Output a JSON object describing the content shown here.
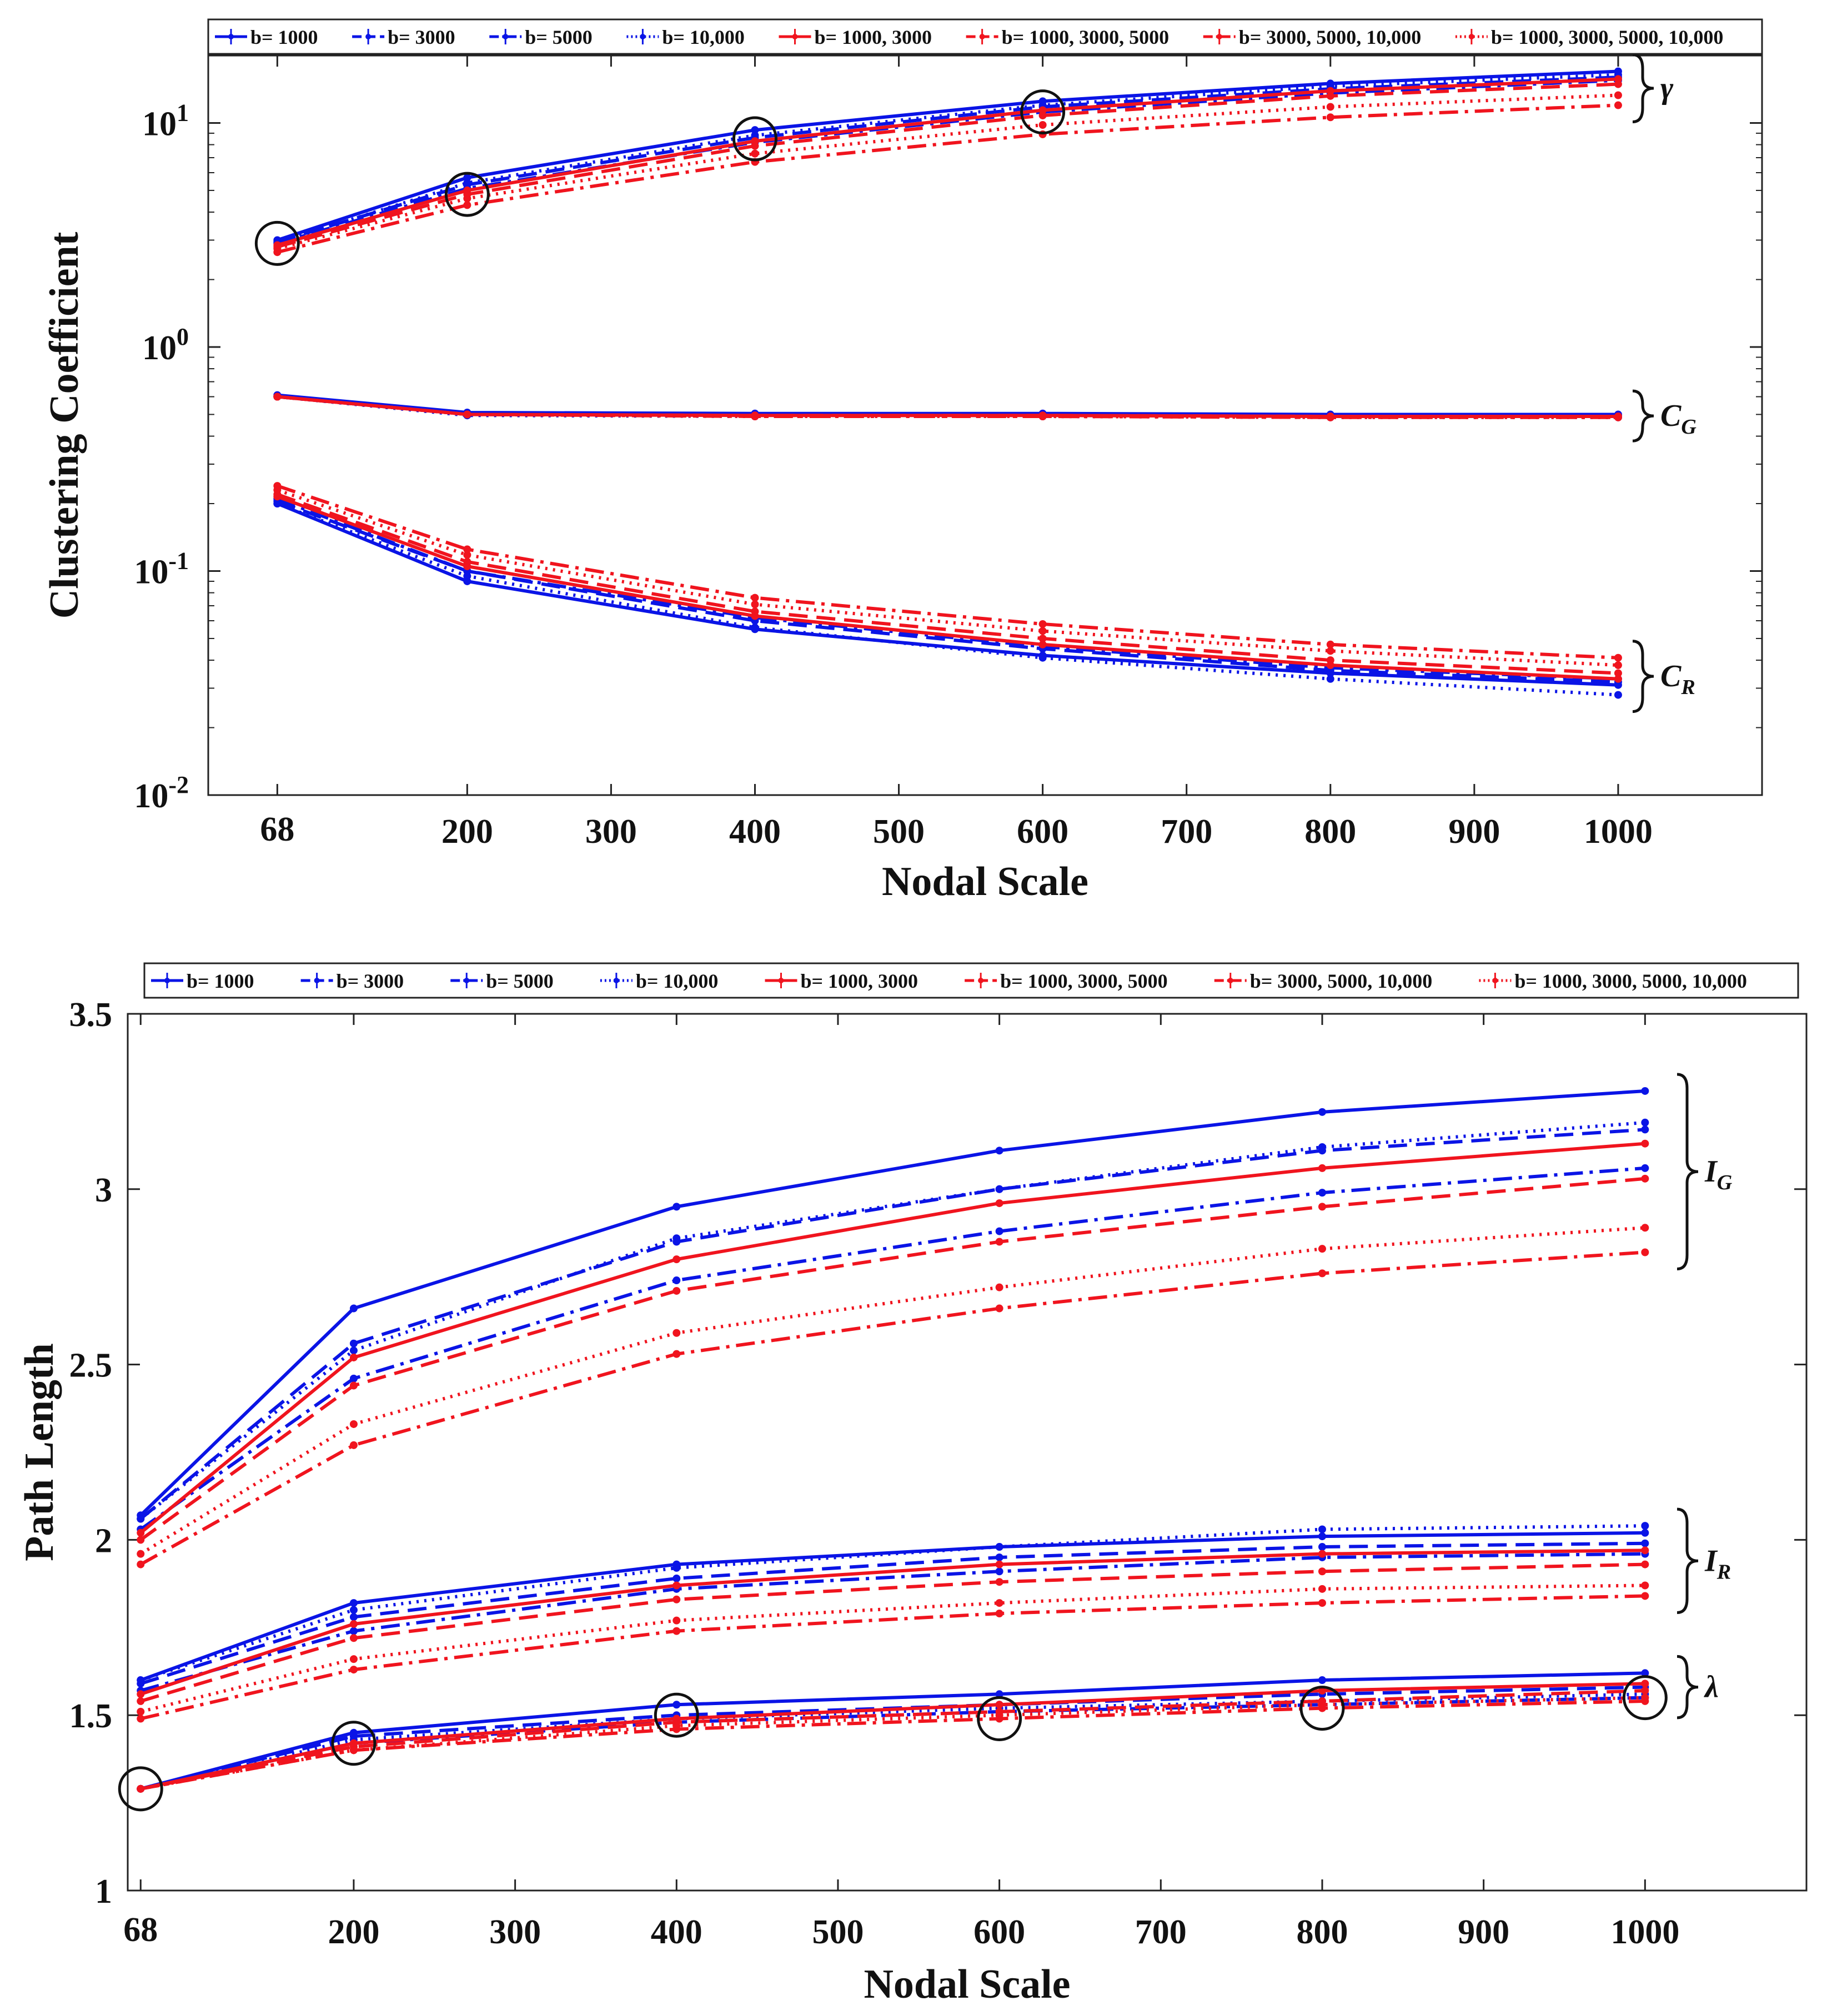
{
  "colors": {
    "blue": "#0a14e6",
    "red": "#f0141e",
    "axis": "#222222",
    "highlight": "#111111"
  },
  "legend_entries": [
    "b= 1000",
    "b= 3000",
    "b= 5000",
    "b= 10,000",
    "b= 1000, 3000",
    "b= 1000, 3000, 5000",
    "b= 3000, 5000, 10,000",
    "b= 1000, 3000, 5000, 10,000"
  ],
  "chart_data": [
    {
      "type": "line",
      "title": "",
      "xlabel": "Nodal Scale",
      "ylabel": "Clustering Coefficient",
      "yscale": "log",
      "ylim": [
        0.01,
        20
      ],
      "xlim": [
        20,
        1100
      ],
      "x": [
        68,
        200,
        400,
        600,
        800,
        1000
      ],
      "x_ticks": [
        68,
        200,
        300,
        400,
        500,
        600,
        700,
        800,
        900,
        1000
      ],
      "x_tick_labels": [
        "68",
        "200",
        "300",
        "400",
        "500",
        "600",
        "700",
        "800",
        "900",
        "1000"
      ],
      "y_tick_labels": [
        {
          "base": "10",
          "exp": "1"
        },
        {
          "base": "10",
          "exp": "0"
        },
        {
          "base": "10",
          "exp": "-1"
        },
        {
          "base": "10",
          "exp": "-2"
        }
      ],
      "legend_position": "top",
      "groups": [
        {
          "label": "γ",
          "sub": ""
        },
        {
          "label": "C",
          "sub": "G"
        },
        {
          "label": "C",
          "sub": "R"
        }
      ],
      "highlighted_points": [
        [
          68,
          2.9
        ],
        [
          200,
          4.8
        ],
        [
          400,
          8.5
        ],
        [
          600,
          11.2
        ]
      ],
      "series": [
        {
          "name": "b= 1000",
          "group": 0,
          "color": "blue",
          "style": "solid",
          "values": [
            3.0,
            5.7,
            9.3,
            12.5,
            15.0,
            17.0
          ]
        },
        {
          "name": "b= 3000",
          "group": 0,
          "color": "blue",
          "style": "dashed",
          "values": [
            2.95,
            5.3,
            8.6,
            11.8,
            14.2,
            16.0
          ]
        },
        {
          "name": "b= 5000",
          "group": 0,
          "color": "blue",
          "style": "dashdot",
          "values": [
            2.9,
            5.1,
            8.2,
            11.2,
            13.6,
            15.5
          ]
        },
        {
          "name": "b= 10,000",
          "group": 0,
          "color": "blue",
          "style": "dotted",
          "values": [
            2.92,
            5.4,
            8.8,
            12.0,
            14.6,
            16.4
          ]
        },
        {
          "name": "b= 1000, 3000",
          "group": 0,
          "color": "red",
          "style": "solid",
          "values": [
            2.85,
            5.0,
            8.3,
            11.4,
            13.9,
            15.7
          ]
        },
        {
          "name": "b= 1000, 3000, 5000",
          "group": 0,
          "color": "red",
          "style": "dashed",
          "values": [
            2.8,
            4.8,
            7.9,
            10.8,
            13.2,
            14.9
          ]
        },
        {
          "name": "b= 3000, 5000, 10,000",
          "group": 0,
          "color": "red",
          "style": "dashdot",
          "values": [
            2.65,
            4.3,
            6.7,
            8.9,
            10.6,
            12.0
          ]
        },
        {
          "name": "b= 1000, 3000, 5000, 10,000",
          "group": 0,
          "color": "red",
          "style": "dotted",
          "values": [
            2.75,
            4.6,
            7.3,
            9.8,
            11.8,
            13.3
          ]
        },
        {
          "name": "b= 1000",
          "group": 1,
          "color": "blue",
          "style": "solid",
          "values": [
            0.61,
            0.51,
            0.505,
            0.505,
            0.5,
            0.5
          ]
        },
        {
          "name": "b= 3000",
          "group": 1,
          "color": "blue",
          "style": "dashed",
          "values": [
            0.605,
            0.505,
            0.5,
            0.5,
            0.495,
            0.495
          ]
        },
        {
          "name": "b= 5000",
          "group": 1,
          "color": "blue",
          "style": "dashdot",
          "values": [
            0.6,
            0.5,
            0.495,
            0.495,
            0.49,
            0.49
          ]
        },
        {
          "name": "b= 10,000",
          "group": 1,
          "color": "blue",
          "style": "dotted",
          "values": [
            0.6,
            0.495,
            0.49,
            0.49,
            0.485,
            0.485
          ]
        },
        {
          "name": "b= 1000, 3000",
          "group": 1,
          "color": "red",
          "style": "solid",
          "values": [
            0.6,
            0.5,
            0.495,
            0.495,
            0.49,
            0.49
          ]
        },
        {
          "name": "b= 1000, 3000, 5000",
          "group": 1,
          "color": "red",
          "style": "dashed",
          "values": [
            0.6,
            0.5,
            0.495,
            0.495,
            0.49,
            0.49
          ]
        },
        {
          "name": "b= 3000, 5000, 10,000",
          "group": 1,
          "color": "red",
          "style": "dashdot",
          "values": [
            0.6,
            0.5,
            0.49,
            0.49,
            0.485,
            0.485
          ]
        },
        {
          "name": "b= 1000, 3000, 5000, 10,000",
          "group": 1,
          "color": "red",
          "style": "dotted",
          "values": [
            0.6,
            0.5,
            0.49,
            0.49,
            0.485,
            0.485
          ]
        },
        {
          "name": "b= 1000",
          "group": 2,
          "color": "blue",
          "style": "solid",
          "values": [
            0.2,
            0.09,
            0.055,
            0.042,
            0.035,
            0.031
          ]
        },
        {
          "name": "b= 3000",
          "group": 2,
          "color": "blue",
          "style": "dashed",
          "values": [
            0.205,
            0.1,
            0.06,
            0.045,
            0.036,
            0.032
          ]
        },
        {
          "name": "b= 5000",
          "group": 2,
          "color": "blue",
          "style": "dashdot",
          "values": [
            0.21,
            0.1,
            0.062,
            0.046,
            0.037,
            0.033
          ]
        },
        {
          "name": "b= 10,000",
          "group": 2,
          "color": "blue",
          "style": "dotted",
          "values": [
            0.2,
            0.095,
            0.056,
            0.041,
            0.033,
            0.028
          ]
        },
        {
          "name": "b= 1000, 3000",
          "group": 2,
          "color": "red",
          "style": "solid",
          "values": [
            0.215,
            0.105,
            0.063,
            0.047,
            0.038,
            0.033
          ]
        },
        {
          "name": "b= 1000, 3000, 5000",
          "group": 2,
          "color": "red",
          "style": "dashed",
          "values": [
            0.22,
            0.11,
            0.066,
            0.05,
            0.04,
            0.035
          ]
        },
        {
          "name": "b= 3000, 5000, 10,000",
          "group": 2,
          "color": "red",
          "style": "dashdot",
          "values": [
            0.24,
            0.125,
            0.076,
            0.058,
            0.047,
            0.041
          ]
        },
        {
          "name": "b= 1000, 3000, 5000, 10,000",
          "group": 2,
          "color": "red",
          "style": "dotted",
          "values": [
            0.23,
            0.118,
            0.071,
            0.054,
            0.044,
            0.038
          ]
        }
      ]
    },
    {
      "type": "line",
      "title": "",
      "xlabel": "Nodal Scale",
      "ylabel": "Path Length",
      "yscale": "linear",
      "ylim": [
        1,
        3.5
      ],
      "xlim": [
        60,
        1100
      ],
      "x": [
        68,
        200,
        400,
        600,
        800,
        1000
      ],
      "x_ticks": [
        68,
        200,
        300,
        400,
        500,
        600,
        700,
        800,
        900,
        1000
      ],
      "x_tick_labels": [
        "68",
        "200",
        "300",
        "400",
        "500",
        "600",
        "700",
        "800",
        "900",
        "1000"
      ],
      "y_ticks": [
        1,
        1.5,
        2,
        2.5,
        3,
        3.5
      ],
      "y_tick_labels": [
        "1",
        "1.5",
        "2",
        "2.5",
        "3",
        "3.5"
      ],
      "legend_position": "top",
      "groups": [
        {
          "label": "I",
          "sub": "G"
        },
        {
          "label": "I",
          "sub": "R"
        },
        {
          "label": "λ",
          "sub": ""
        }
      ],
      "highlighted_points": [
        [
          68,
          1.29
        ],
        [
          200,
          1.42
        ],
        [
          400,
          1.5
        ],
        [
          600,
          1.49
        ],
        [
          800,
          1.52
        ],
        [
          1000,
          1.55
        ]
      ],
      "series": [
        {
          "name": "b= 1000",
          "group": 0,
          "color": "blue",
          "style": "solid",
          "values": [
            2.07,
            2.66,
            2.95,
            3.11,
            3.22,
            3.28
          ]
        },
        {
          "name": "b= 3000",
          "group": 0,
          "color": "blue",
          "style": "dashed",
          "values": [
            2.06,
            2.56,
            2.85,
            3.0,
            3.11,
            3.17
          ]
        },
        {
          "name": "b= 5000",
          "group": 0,
          "color": "blue",
          "style": "dashdot",
          "values": [
            2.03,
            2.46,
            2.74,
            2.88,
            2.99,
            3.06
          ]
        },
        {
          "name": "b= 10,000",
          "group": 0,
          "color": "blue",
          "style": "dotted",
          "values": [
            2.06,
            2.54,
            2.86,
            3.0,
            3.12,
            3.19
          ]
        },
        {
          "name": "b= 1000, 3000",
          "group": 0,
          "color": "red",
          "style": "solid",
          "values": [
            2.02,
            2.52,
            2.8,
            2.96,
            3.06,
            3.13
          ]
        },
        {
          "name": "b= 1000, 3000, 5000",
          "group": 0,
          "color": "red",
          "style": "dashed",
          "values": [
            2.0,
            2.44,
            2.71,
            2.85,
            2.95,
            3.03
          ]
        },
        {
          "name": "b= 3000, 5000, 10,000",
          "group": 0,
          "color": "red",
          "style": "dashdot",
          "values": [
            1.93,
            2.27,
            2.53,
            2.66,
            2.76,
            2.82
          ]
        },
        {
          "name": "b= 1000, 3000, 5000, 10,000",
          "group": 0,
          "color": "red",
          "style": "dotted",
          "values": [
            1.96,
            2.33,
            2.59,
            2.72,
            2.83,
            2.89
          ]
        },
        {
          "name": "b= 1000",
          "group": 1,
          "color": "blue",
          "style": "solid",
          "values": [
            1.6,
            1.82,
            1.93,
            1.98,
            2.01,
            2.02
          ]
        },
        {
          "name": "b= 3000",
          "group": 1,
          "color": "blue",
          "style": "dashed",
          "values": [
            1.59,
            1.78,
            1.89,
            1.95,
            1.98,
            1.99
          ]
        },
        {
          "name": "b= 5000",
          "group": 1,
          "color": "blue",
          "style": "dashdot",
          "values": [
            1.57,
            1.74,
            1.86,
            1.91,
            1.95,
            1.96
          ]
        },
        {
          "name": "b= 10,000",
          "group": 1,
          "color": "blue",
          "style": "dotted",
          "values": [
            1.6,
            1.8,
            1.92,
            1.98,
            2.03,
            2.04
          ]
        },
        {
          "name": "b= 1000, 3000",
          "group": 1,
          "color": "red",
          "style": "solid",
          "values": [
            1.56,
            1.76,
            1.87,
            1.93,
            1.96,
            1.97
          ]
        },
        {
          "name": "b= 1000, 3000, 5000",
          "group": 1,
          "color": "red",
          "style": "dashed",
          "values": [
            1.54,
            1.72,
            1.83,
            1.88,
            1.91,
            1.93
          ]
        },
        {
          "name": "b= 3000, 5000, 10,000",
          "group": 1,
          "color": "red",
          "style": "dashdot",
          "values": [
            1.49,
            1.63,
            1.74,
            1.79,
            1.82,
            1.84
          ]
        },
        {
          "name": "b= 1000, 3000, 5000, 10,000",
          "group": 1,
          "color": "red",
          "style": "dotted",
          "values": [
            1.51,
            1.66,
            1.77,
            1.82,
            1.86,
            1.87
          ]
        },
        {
          "name": "b= 1000",
          "group": 2,
          "color": "blue",
          "style": "solid",
          "values": [
            1.29,
            1.45,
            1.53,
            1.56,
            1.6,
            1.62
          ]
        },
        {
          "name": "b= 3000",
          "group": 2,
          "color": "blue",
          "style": "dashed",
          "values": [
            1.29,
            1.44,
            1.5,
            1.53,
            1.56,
            1.58
          ]
        },
        {
          "name": "b= 5000",
          "group": 2,
          "color": "blue",
          "style": "dashdot",
          "values": [
            1.29,
            1.42,
            1.48,
            1.51,
            1.53,
            1.55
          ]
        },
        {
          "name": "b= 10,000",
          "group": 2,
          "color": "blue",
          "style": "dotted",
          "values": [
            1.29,
            1.43,
            1.49,
            1.52,
            1.54,
            1.56
          ]
        },
        {
          "name": "b= 1000, 3000",
          "group": 2,
          "color": "red",
          "style": "solid",
          "values": [
            1.29,
            1.42,
            1.49,
            1.53,
            1.57,
            1.59
          ]
        },
        {
          "name": "b= 1000, 3000, 5000",
          "group": 2,
          "color": "red",
          "style": "dashed",
          "values": [
            1.29,
            1.41,
            1.48,
            1.51,
            1.54,
            1.57
          ]
        },
        {
          "name": "b= 3000, 5000, 10,000",
          "group": 2,
          "color": "red",
          "style": "dashdot",
          "values": [
            1.29,
            1.4,
            1.46,
            1.49,
            1.52,
            1.54
          ]
        },
        {
          "name": "b= 1000, 3000, 5000, 10,000",
          "group": 2,
          "color": "red",
          "style": "dotted",
          "values": [
            1.29,
            1.4,
            1.47,
            1.5,
            1.53,
            1.55
          ]
        }
      ]
    }
  ]
}
